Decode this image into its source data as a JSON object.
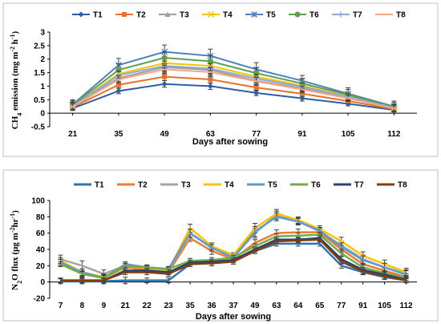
{
  "chart_data": [
    {
      "type": "line",
      "title": "",
      "xlabel": "Days after sowing",
      "ylabel_main": "CH",
      "ylabel_sub": "4",
      "ylabel_rest": " emission (mg m",
      "ylabel_sup1": "-2",
      "ylabel_mid": " h",
      "ylabel_sup2": "-1",
      "ylabel_end": ")",
      "categories": [
        "21",
        "35",
        "49",
        "63",
        "77",
        "91",
        "105",
        "112"
      ],
      "ylim": [
        -0.5,
        3
      ],
      "yticks": [
        "-0.5",
        "0",
        "0.5",
        "1",
        "1.5",
        "2",
        "2.5",
        "3"
      ],
      "yticks_values": [
        -0.5,
        0,
        0.5,
        1,
        1.5,
        2,
        2.5,
        3
      ],
      "legend_position": "top",
      "grid": false,
      "series": [
        {
          "name": "T1",
          "color": "#2e5ea8",
          "marker": "diamond",
          "values": [
            0.18,
            0.82,
            1.08,
            1.0,
            0.75,
            0.55,
            0.35,
            0.12
          ],
          "err": [
            0.08,
            0.1,
            0.12,
            0.12,
            0.1,
            0.1,
            0.08,
            0.06
          ]
        },
        {
          "name": "T2",
          "color": "#e8702a",
          "marker": "square",
          "values": [
            0.22,
            1.05,
            1.35,
            1.25,
            0.95,
            0.72,
            0.45,
            0.15
          ],
          "err": [
            0.1,
            0.12,
            0.14,
            0.14,
            0.12,
            0.1,
            0.1,
            0.08
          ]
        },
        {
          "name": "T3",
          "color": "#9e9e9e",
          "marker": "triangle",
          "values": [
            0.25,
            1.3,
            1.7,
            1.6,
            1.2,
            0.92,
            0.55,
            0.18
          ],
          "err": [
            0.12,
            0.14,
            0.16,
            0.16,
            0.14,
            0.12,
            0.1,
            0.1
          ]
        },
        {
          "name": "T4",
          "color": "#f5c400",
          "marker": "x",
          "values": [
            0.28,
            1.45,
            1.85,
            1.75,
            1.35,
            1.02,
            0.62,
            0.2
          ],
          "err": [
            0.14,
            0.16,
            0.18,
            0.18,
            0.16,
            0.14,
            0.12,
            0.12
          ]
        },
        {
          "name": "T5",
          "color": "#4f81bd",
          "marker": "star",
          "values": [
            0.32,
            1.78,
            2.27,
            2.12,
            1.62,
            1.2,
            0.72,
            0.25
          ],
          "err": [
            0.18,
            0.25,
            0.25,
            0.25,
            0.25,
            0.2,
            0.22,
            0.2
          ]
        },
        {
          "name": "T6",
          "color": "#5fa04e",
          "marker": "circle",
          "values": [
            0.3,
            1.6,
            2.05,
            1.92,
            1.48,
            1.1,
            0.68,
            0.22
          ],
          "err": [
            0.16,
            0.22,
            0.22,
            0.22,
            0.2,
            0.18,
            0.2,
            0.18
          ]
        },
        {
          "name": "T7",
          "color": "#8eaadb",
          "marker": "plus",
          "values": [
            0.26,
            1.4,
            1.75,
            1.65,
            1.28,
            0.98,
            0.6,
            0.2
          ],
          "err": [
            0.14,
            0.16,
            0.18,
            0.18,
            0.16,
            0.14,
            0.14,
            0.14
          ]
        },
        {
          "name": "T8",
          "color": "#f4a582",
          "marker": "dash",
          "values": [
            0.24,
            1.25,
            1.62,
            1.52,
            1.18,
            0.88,
            0.55,
            0.18
          ],
          "err": [
            0.12,
            0.14,
            0.16,
            0.16,
            0.14,
            0.12,
            0.12,
            0.12
          ]
        }
      ]
    },
    {
      "type": "line",
      "title": "",
      "xlabel": "Days after sowing",
      "ylabel_main": "N",
      "ylabel_sub": "2",
      "ylabel_rest": "O flux (μg m",
      "ylabel_sup1": "-2",
      "ylabel_mid": "hr",
      "ylabel_sup2": "-1",
      "ylabel_end": ")",
      "categories": [
        "7",
        "8",
        "9",
        "21",
        "22",
        "23",
        "35",
        "36",
        "37",
        "49",
        "63",
        "64",
        "65",
        "77",
        "91",
        "105",
        "112"
      ],
      "ylim": [
        -20,
        100
      ],
      "yticks": [
        "-20",
        "0",
        "20",
        "40",
        "60",
        "80",
        "100"
      ],
      "yticks_values": [
        -20,
        0,
        20,
        40,
        60,
        80,
        100
      ],
      "legend_position": "top",
      "grid": false,
      "series": [
        {
          "name": "T1",
          "color": "#2e75b6",
          "values": [
            1,
            1,
            1,
            2,
            2,
            2,
            22,
            23,
            25,
            38,
            47,
            47,
            47,
            20,
            12,
            6,
            2
          ],
          "err": [
            3,
            3,
            3,
            4,
            3,
            3,
            3,
            3,
            3,
            3,
            3,
            3,
            3,
            3,
            3,
            3,
            3
          ]
        },
        {
          "name": "T2",
          "color": "#ed7d31",
          "values": [
            24,
            10,
            5,
            18,
            15,
            12,
            54,
            38,
            28,
            48,
            60,
            61,
            61,
            40,
            22,
            14,
            6
          ],
          "err": [
            4,
            4,
            4,
            3,
            3,
            3,
            4,
            4,
            3,
            4,
            4,
            4,
            4,
            4,
            4,
            4,
            4
          ]
        },
        {
          "name": "T3",
          "color": "#a5a5a5",
          "values": [
            28,
            20,
            10,
            20,
            17,
            14,
            60,
            42,
            30,
            60,
            82,
            75,
            62,
            45,
            28,
            18,
            10
          ],
          "err": [
            5,
            6,
            5,
            3,
            3,
            3,
            5,
            4,
            3,
            6,
            5,
            4,
            4,
            5,
            5,
            5,
            5
          ]
        },
        {
          "name": "T4",
          "color": "#ffc000",
          "values": [
            26,
            12,
            6,
            20,
            17,
            15,
            66,
            44,
            33,
            66,
            84,
            76,
            65,
            50,
            32,
            22,
            12
          ],
          "err": [
            4,
            4,
            4,
            3,
            3,
            3,
            5,
            4,
            3,
            6,
            5,
            4,
            4,
            5,
            5,
            5,
            5
          ]
        },
        {
          "name": "T5",
          "color": "#5b9bd5",
          "values": [
            24,
            12,
            5,
            22,
            18,
            16,
            60,
            42,
            30,
            62,
            80,
            74,
            63,
            43,
            27,
            18,
            9
          ],
          "err": [
            4,
            4,
            4,
            3,
            3,
            3,
            5,
            4,
            3,
            6,
            5,
            4,
            4,
            5,
            5,
            5,
            5
          ]
        },
        {
          "name": "T6",
          "color": "#70ad47",
          "values": [
            22,
            10,
            5,
            20,
            18,
            16,
            26,
            27,
            30,
            44,
            56,
            57,
            58,
            35,
            18,
            11,
            5
          ],
          "err": [
            3,
            3,
            3,
            3,
            3,
            3,
            3,
            3,
            3,
            3,
            3,
            3,
            3,
            3,
            3,
            3,
            3
          ]
        },
        {
          "name": "T7",
          "color": "#264478",
          "values": [
            2,
            2,
            2,
            14,
            14,
            12,
            24,
            25,
            27,
            40,
            52,
            52,
            54,
            28,
            15,
            9,
            3
          ],
          "err": [
            3,
            3,
            3,
            3,
            3,
            3,
            3,
            3,
            3,
            3,
            3,
            3,
            3,
            3,
            3,
            3,
            3
          ]
        },
        {
          "name": "T8",
          "color": "#843c0c",
          "values": [
            2,
            2,
            2,
            12,
            12,
            10,
            22,
            23,
            25,
            38,
            50,
            51,
            52,
            25,
            13,
            7,
            2
          ],
          "err": [
            3,
            3,
            3,
            3,
            3,
            3,
            3,
            3,
            3,
            3,
            3,
            3,
            3,
            3,
            3,
            3,
            3
          ]
        }
      ]
    }
  ]
}
